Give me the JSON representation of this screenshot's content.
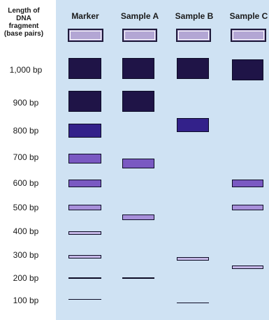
{
  "axis_title": [
    "Length of",
    "DNA",
    "fragment",
    "(base pairs)"
  ],
  "lanes": [
    {
      "name": "Marker",
      "key": "marker"
    },
    {
      "name": "Sample A",
      "key": "sample-a"
    },
    {
      "name": "Sample B",
      "key": "sample-b"
    },
    {
      "name": "Sample C",
      "key": "sample-c"
    }
  ],
  "sizes": [
    "1,000 bp",
    "900 bp",
    "800 bp",
    "700 bp",
    "600 bp",
    "500 bp",
    "400 bp",
    "300 bp",
    "200 bp",
    "100 bp"
  ],
  "bands": {
    "marker": [
      1000,
      900,
      800,
      700,
      600,
      500,
      400,
      300,
      200,
      100
    ],
    "sample-a": [
      1000,
      900,
      680,
      460,
      200
    ],
    "sample-b": [
      1000,
      820,
      290,
      80
    ],
    "sample-c": [
      995,
      600,
      500,
      250
    ]
  },
  "colors": {
    "gel": "#cfe2f3",
    "well": "#b3a6d4",
    "band_dark": "#1f1447",
    "band_mid": "#33218a",
    "band_light": "#7a59c2",
    "band_pale": "#a78fd9",
    "band_faint": "#c5b7e6"
  }
}
